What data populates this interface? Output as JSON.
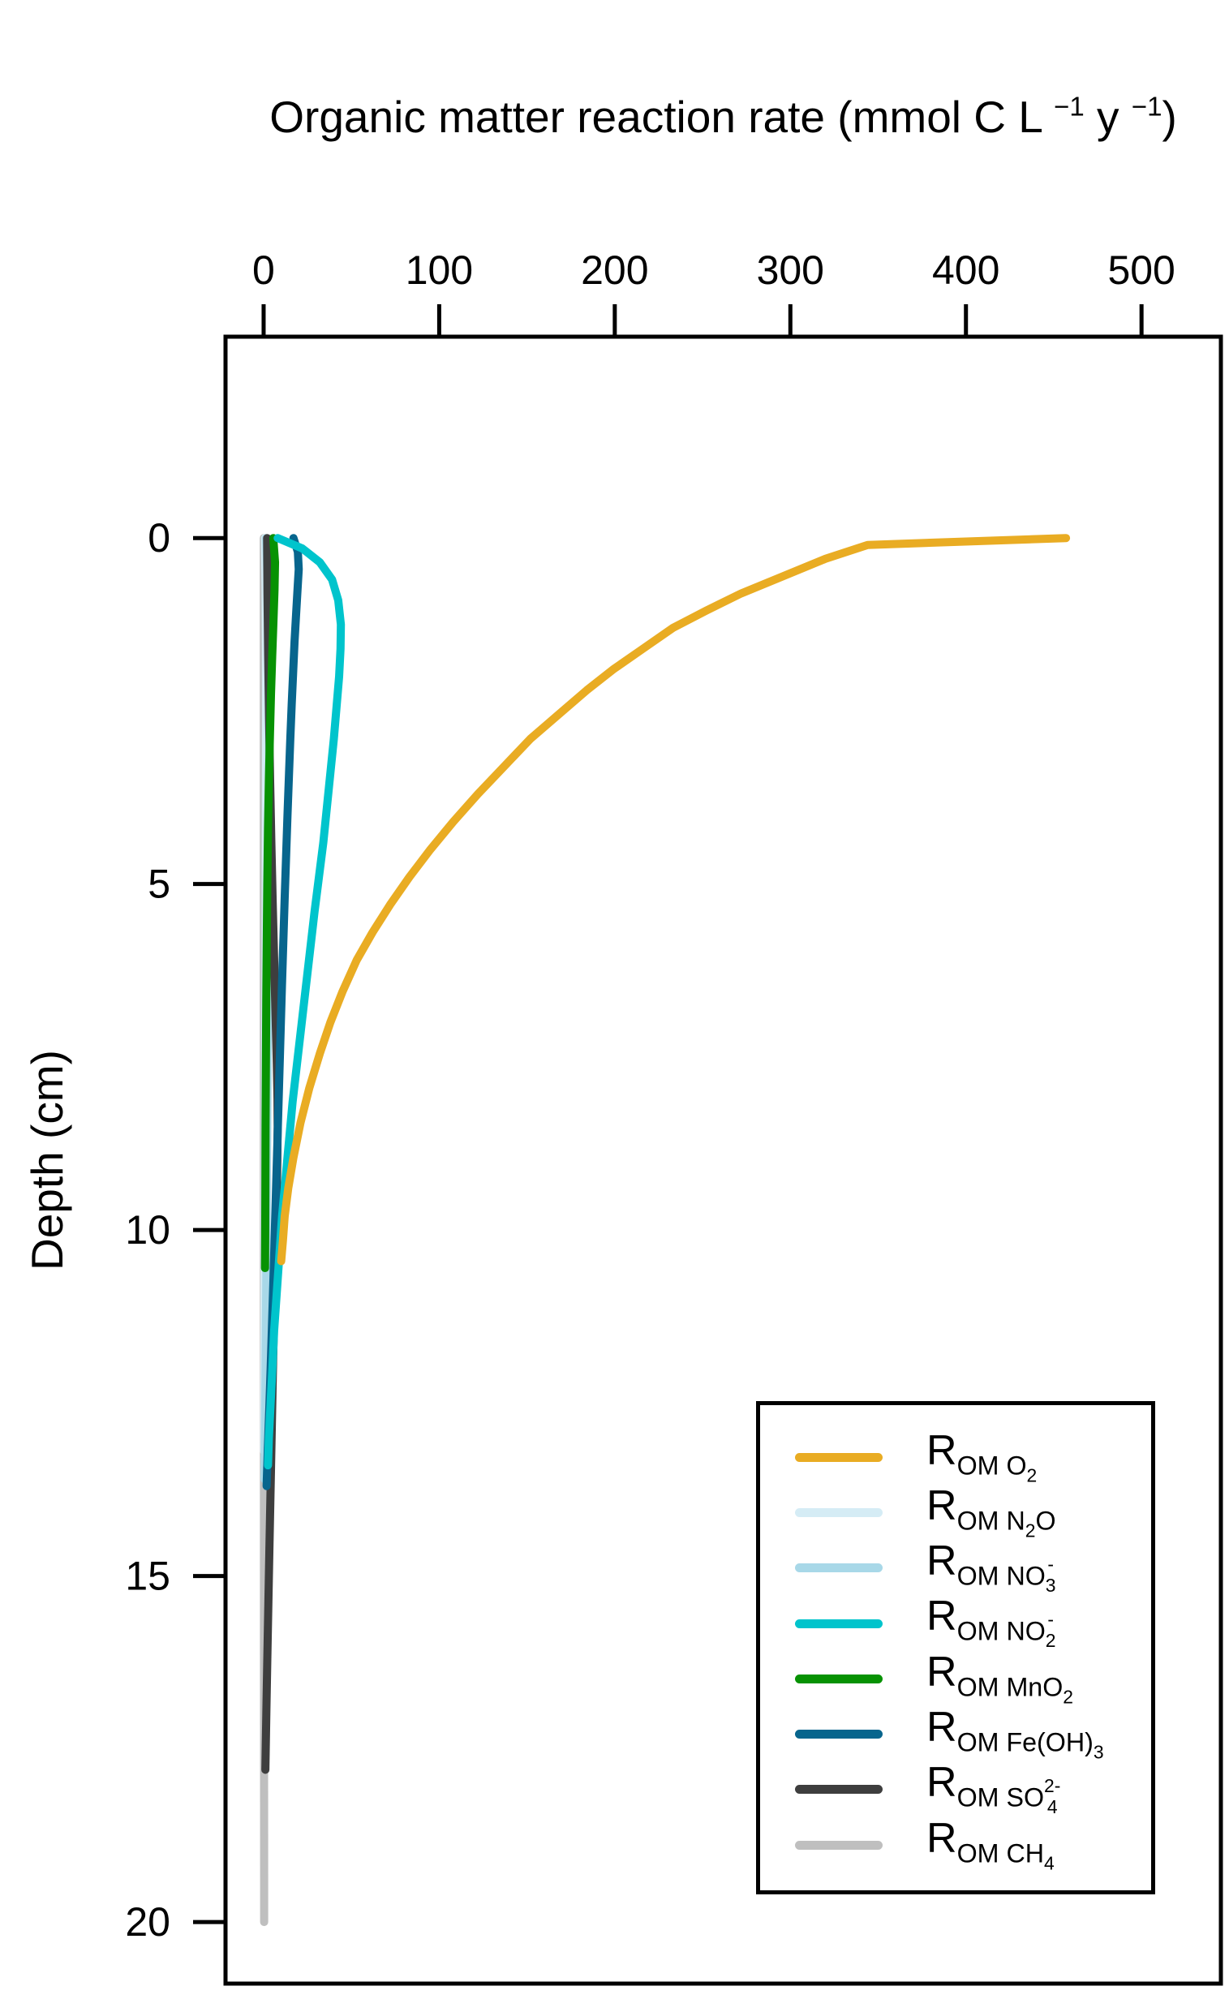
{
  "figure": {
    "title_segments": [
      {
        "kind": "base",
        "text": "Organic matter reaction rate (mmol C L "
      },
      {
        "kind": "sup",
        "text": "−1"
      },
      {
        "kind": "base",
        "text": " y "
      },
      {
        "kind": "sup",
        "text": "−1"
      },
      {
        "kind": "base",
        "text": ")"
      }
    ],
    "y_axis_label": "Depth (cm)"
  },
  "chart_data": {
    "type": "line",
    "orientation": "depth-profile",
    "title": "Organic matter reaction rate (mmol C L-1 y-1)",
    "xlabel": "Organic matter reaction rate (mmol C L-1 y-1)",
    "ylabel": "Depth (cm)",
    "x_axis_side": "top",
    "x_ticks": [
      0,
      100,
      200,
      300,
      400,
      500
    ],
    "y_ticks": [
      0,
      5,
      10,
      15,
      20
    ],
    "xlim": [
      -21.7,
      545.2
    ],
    "depth_lim": [
      -2.91,
      20.89
    ],
    "grid": "off",
    "legend_position": "bottom-right",
    "frame_color": "#000000",
    "draw_order": [
      7,
      1,
      2,
      6,
      4,
      5,
      3,
      0
    ],
    "series": [
      {
        "id": "om-o2",
        "name": "R_OM O2",
        "color": "#E9AC23",
        "points": [
          [
            457,
            0
          ],
          [
            344,
            0.1
          ],
          [
            320,
            0.3
          ],
          [
            296,
            0.55
          ],
          [
            272,
            0.8
          ],
          [
            252,
            1.05
          ],
          [
            233,
            1.3
          ],
          [
            216,
            1.6
          ],
          [
            199,
            1.9
          ],
          [
            184,
            2.2
          ],
          [
            168,
            2.55
          ],
          [
            152,
            2.9
          ],
          [
            137,
            3.3
          ],
          [
            122,
            3.7
          ],
          [
            108,
            4.1
          ],
          [
            95,
            4.5
          ],
          [
            83,
            4.9
          ],
          [
            72,
            5.3
          ],
          [
            62,
            5.7
          ],
          [
            53,
            6.1
          ],
          [
            45,
            6.55
          ],
          [
            38,
            7
          ],
          [
            32,
            7.45
          ],
          [
            26,
            7.95
          ],
          [
            21,
            8.45
          ],
          [
            17,
            8.95
          ],
          [
            14,
            9.4
          ],
          [
            12,
            9.8
          ],
          [
            11,
            10.15
          ],
          [
            10,
            10.45
          ]
        ]
      },
      {
        "id": "om-n2o",
        "name": "R_OM N2O",
        "color": "#D5ECF5",
        "points": [
          [
            0.8,
            0
          ],
          [
            1.1,
            0.7
          ],
          [
            1.3,
            1.6
          ],
          [
            1.4,
            2.6
          ],
          [
            1.3,
            3.7
          ],
          [
            1.2,
            4.9
          ],
          [
            1.1,
            6.1
          ],
          [
            0.9,
            7.4
          ],
          [
            0.8,
            8.7
          ],
          [
            0.6,
            10
          ],
          [
            0.5,
            11.2
          ],
          [
            0.4,
            12.3
          ],
          [
            0.3,
            13.2
          ]
        ]
      },
      {
        "id": "om-no3",
        "name": "R_OM NO3-",
        "color": "#A8D8E8",
        "points": [
          [
            1.5,
            0
          ],
          [
            2.2,
            0.6
          ],
          [
            2.7,
            1.3
          ],
          [
            3,
            2.1
          ],
          [
            3.1,
            3
          ],
          [
            3,
            4
          ],
          [
            2.9,
            5
          ],
          [
            2.7,
            6.1
          ],
          [
            2.4,
            7.2
          ],
          [
            2.1,
            8.4
          ],
          [
            1.8,
            9.6
          ],
          [
            1.5,
            10.8
          ],
          [
            1.1,
            11.9
          ],
          [
            0.8,
            12.9
          ],
          [
            0.5,
            13.6
          ]
        ]
      },
      {
        "id": "om-no2",
        "name": "R_OM NO2-",
        "color": "#00C4CC",
        "points": [
          [
            8,
            0
          ],
          [
            22,
            0.15
          ],
          [
            32,
            0.35
          ],
          [
            39,
            0.6
          ],
          [
            42.5,
            0.9
          ],
          [
            44,
            1.25
          ],
          [
            43.8,
            1.6
          ],
          [
            43,
            2
          ],
          [
            41.5,
            2.45
          ],
          [
            40,
            2.9
          ],
          [
            38,
            3.4
          ],
          [
            36,
            3.9
          ],
          [
            34,
            4.4
          ],
          [
            31.5,
            4.9
          ],
          [
            29,
            5.4
          ],
          [
            26.5,
            5.95
          ],
          [
            24,
            6.5
          ],
          [
            21.5,
            7.05
          ],
          [
            19,
            7.6
          ],
          [
            16.5,
            8.15
          ],
          [
            14.5,
            8.7
          ],
          [
            12.5,
            9.25
          ],
          [
            10.5,
            9.8
          ],
          [
            9,
            10.35
          ],
          [
            7.5,
            10.9
          ],
          [
            6,
            11.45
          ],
          [
            5,
            12
          ],
          [
            4,
            12.5
          ],
          [
            3,
            13
          ],
          [
            2.5,
            13.4
          ]
        ]
      },
      {
        "id": "om-mno2",
        "name": "R_OM MnO2",
        "color": "#079203",
        "points": [
          [
            5.5,
            0
          ],
          [
            6.5,
            0.35
          ],
          [
            6.2,
            0.75
          ],
          [
            5.6,
            1.2
          ],
          [
            4.9,
            1.7
          ],
          [
            4.2,
            2.25
          ],
          [
            3.6,
            2.85
          ],
          [
            3,
            3.5
          ],
          [
            2.5,
            4.2
          ],
          [
            2.1,
            5
          ],
          [
            1.8,
            5.8
          ],
          [
            1.5,
            6.7
          ],
          [
            1.3,
            7.6
          ],
          [
            1.1,
            8.5
          ],
          [
            1,
            9.4
          ],
          [
            0.9,
            10.1
          ],
          [
            0.8,
            10.55
          ]
        ]
      },
      {
        "id": "om-feoh3",
        "name": "R_OM Fe(OH)3",
        "color": "#07658D",
        "points": [
          [
            17,
            0
          ],
          [
            19.5,
            0.2
          ],
          [
            20,
            0.45
          ],
          [
            19.3,
            0.75
          ],
          [
            18.5,
            1.1
          ],
          [
            17.6,
            1.5
          ],
          [
            16.8,
            1.95
          ],
          [
            16,
            2.4
          ],
          [
            15.2,
            2.9
          ],
          [
            14.4,
            3.45
          ],
          [
            13.6,
            4
          ],
          [
            12.8,
            4.6
          ],
          [
            12,
            5.2
          ],
          [
            11.2,
            5.85
          ],
          [
            10.4,
            6.5
          ],
          [
            9.6,
            7.2
          ],
          [
            8.8,
            7.9
          ],
          [
            8,
            8.6
          ],
          [
            7.2,
            9.3
          ],
          [
            6.4,
            10
          ],
          [
            5.6,
            10.7
          ],
          [
            4.8,
            11.35
          ],
          [
            4,
            12
          ],
          [
            3.2,
            12.6
          ],
          [
            2.4,
            13.15
          ],
          [
            1.7,
            13.7
          ]
        ]
      },
      {
        "id": "om-so4",
        "name": "R_OM SO4 2-",
        "color": "#3E3E3E",
        "points": [
          [
            2,
            0
          ],
          [
            2.2,
            0.8
          ],
          [
            2.6,
            1.7
          ],
          [
            3.1,
            2.6
          ],
          [
            3.7,
            3.5
          ],
          [
            4.4,
            4.4
          ],
          [
            5.2,
            5.3
          ],
          [
            6,
            6.1
          ],
          [
            6.8,
            6.9
          ],
          [
            7.5,
            7.6
          ],
          [
            7.9,
            8.1
          ],
          [
            8,
            8.5
          ],
          [
            7.8,
            9
          ],
          [
            7.4,
            9.6
          ],
          [
            6.8,
            10.3
          ],
          [
            6.1,
            11.1
          ],
          [
            5.4,
            11.9
          ],
          [
            4.7,
            12.8
          ],
          [
            4,
            13.7
          ],
          [
            3.3,
            14.6
          ],
          [
            2.7,
            15.4
          ],
          [
            2.1,
            16.2
          ],
          [
            1.6,
            16.9
          ],
          [
            1.2,
            17.5
          ],
          [
            1,
            17.8
          ]
        ]
      },
      {
        "id": "om-ch4",
        "name": "R_OM CH4",
        "color": "#BFBFBF",
        "points": [
          [
            0.1,
            0
          ],
          [
            0.1,
            4
          ],
          [
            0.1,
            8
          ],
          [
            0.15,
            12
          ],
          [
            0.2,
            16
          ],
          [
            0.3,
            19.5
          ],
          [
            0.3,
            20
          ]
        ]
      }
    ]
  },
  "legend": {
    "entries": [
      {
        "series_index": 0,
        "name": "R_OM O2",
        "label_segments": [
          {
            "kind": "base",
            "text": "R"
          },
          {
            "kind": "sub",
            "text": "OM O"
          },
          {
            "kind": "subsub",
            "text": "2"
          }
        ]
      },
      {
        "series_index": 1,
        "name": "R_OM N2O",
        "label_segments": [
          {
            "kind": "base",
            "text": "R"
          },
          {
            "kind": "sub",
            "text": "OM N"
          },
          {
            "kind": "subsub",
            "text": "2"
          },
          {
            "kind": "sub",
            "text": "O"
          }
        ]
      },
      {
        "series_index": 2,
        "name": "R_OM NO3-",
        "label_segments": [
          {
            "kind": "base",
            "text": "R"
          },
          {
            "kind": "sub",
            "text": "OM NO"
          },
          {
            "kind": "stack",
            "sup": "-",
            "sub": "3"
          }
        ]
      },
      {
        "series_index": 3,
        "name": "R_OM NO2-",
        "label_segments": [
          {
            "kind": "base",
            "text": "R"
          },
          {
            "kind": "sub",
            "text": "OM NO"
          },
          {
            "kind": "stack",
            "sup": "-",
            "sub": "2"
          }
        ]
      },
      {
        "series_index": 4,
        "name": "R_OM MnO2",
        "label_segments": [
          {
            "kind": "base",
            "text": "R"
          },
          {
            "kind": "sub",
            "text": "OM MnO"
          },
          {
            "kind": "subsub",
            "text": "2"
          }
        ]
      },
      {
        "series_index": 5,
        "name": "R_OM Fe(OH)3",
        "label_segments": [
          {
            "kind": "base",
            "text": "R"
          },
          {
            "kind": "sub",
            "text": "OM Fe(OH)"
          },
          {
            "kind": "subsub",
            "text": "3"
          }
        ]
      },
      {
        "series_index": 6,
        "name": "R_OM SO4 2-",
        "label_segments": [
          {
            "kind": "base",
            "text": "R"
          },
          {
            "kind": "sub",
            "text": "OM SO"
          },
          {
            "kind": "stack",
            "sup": "2-",
            "sub": "4"
          }
        ]
      },
      {
        "series_index": 7,
        "name": "R_OM CH4",
        "label_segments": [
          {
            "kind": "base",
            "text": "R"
          },
          {
            "kind": "sub",
            "text": "OM CH"
          },
          {
            "kind": "subsub",
            "text": "4"
          }
        ]
      }
    ]
  }
}
